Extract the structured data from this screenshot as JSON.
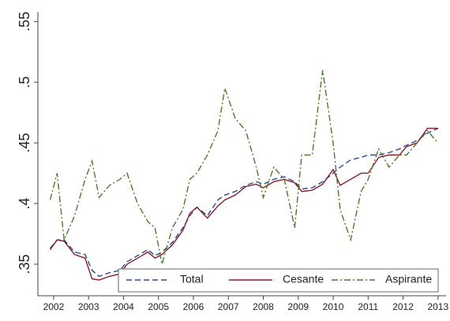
{
  "chart_data": {
    "type": "line",
    "x": [
      2001.9,
      2002.1,
      2002.3,
      2002.6,
      2002.9,
      2003.1,
      2003.3,
      2003.6,
      2003.9,
      2004.1,
      2004.4,
      2004.7,
      2004.9,
      2005.1,
      2005.4,
      2005.7,
      2005.9,
      2006.1,
      2006.4,
      2006.7,
      2006.9,
      2007.2,
      2007.5,
      2007.8,
      2008.0,
      2008.3,
      2008.6,
      2008.9,
      2009.1,
      2009.4,
      2009.7,
      2010.0,
      2010.2,
      2010.5,
      2010.8,
      2011.0,
      2011.3,
      2011.6,
      2011.9,
      2012.1,
      2012.4,
      2012.7,
      2013.0
    ],
    "series": [
      {
        "name": "Total",
        "color": "#2a4a8c",
        "dash": "7,4",
        "values": [
          0.363,
          0.37,
          0.37,
          0.36,
          0.358,
          0.345,
          0.34,
          0.343,
          0.345,
          0.352,
          0.357,
          0.362,
          0.357,
          0.36,
          0.368,
          0.38,
          0.39,
          0.397,
          0.39,
          0.403,
          0.407,
          0.41,
          0.415,
          0.418,
          0.416,
          0.42,
          0.422,
          0.418,
          0.412,
          0.413,
          0.418,
          0.425,
          0.43,
          0.436,
          0.438,
          0.44,
          0.44,
          0.442,
          0.445,
          0.448,
          0.452,
          0.458,
          0.462
        ]
      },
      {
        "name": "Cesante",
        "color": "#8b1a2b",
        "dash": "none",
        "values": [
          0.362,
          0.37,
          0.369,
          0.358,
          0.355,
          0.338,
          0.337,
          0.34,
          0.342,
          0.35,
          0.355,
          0.36,
          0.355,
          0.358,
          0.366,
          0.378,
          0.392,
          0.397,
          0.388,
          0.398,
          0.403,
          0.407,
          0.414,
          0.416,
          0.413,
          0.418,
          0.42,
          0.417,
          0.41,
          0.411,
          0.416,
          0.428,
          0.415,
          0.42,
          0.425,
          0.425,
          0.438,
          0.44,
          0.44,
          0.447,
          0.45,
          0.462,
          0.462
        ]
      },
      {
        "name": "Aspirante",
        "color": "#4f7a28",
        "dash": "8,3,2,3",
        "values": [
          0.403,
          0.425,
          0.37,
          0.39,
          0.42,
          0.435,
          0.405,
          0.415,
          0.42,
          0.425,
          0.4,
          0.385,
          0.38,
          0.35,
          0.38,
          0.395,
          0.42,
          0.425,
          0.44,
          0.46,
          0.495,
          0.47,
          0.46,
          0.43,
          0.405,
          0.43,
          0.42,
          0.38,
          0.44,
          0.44,
          0.51,
          0.45,
          0.395,
          0.37,
          0.41,
          0.42,
          0.445,
          0.43,
          0.44,
          0.44,
          0.45,
          0.46,
          0.45
        ]
      }
    ],
    "xlim": [
      2001.55,
      2013.23
    ],
    "xticks": [
      2002,
      2003,
      2004,
      2005,
      2006,
      2007,
      2008,
      2009,
      2010,
      2011,
      2012,
      2013
    ],
    "ylim": [
      0.324,
      0.558
    ],
    "yticks": [
      {
        "value": 0.35,
        "label": ".35"
      },
      {
        "value": 0.4,
        "label": ".4"
      },
      {
        "value": 0.45,
        "label": ".45"
      },
      {
        "value": 0.5,
        "label": ".5"
      },
      {
        "value": 0.55,
        "label": ".55"
      }
    ],
    "legend": "bottom"
  }
}
